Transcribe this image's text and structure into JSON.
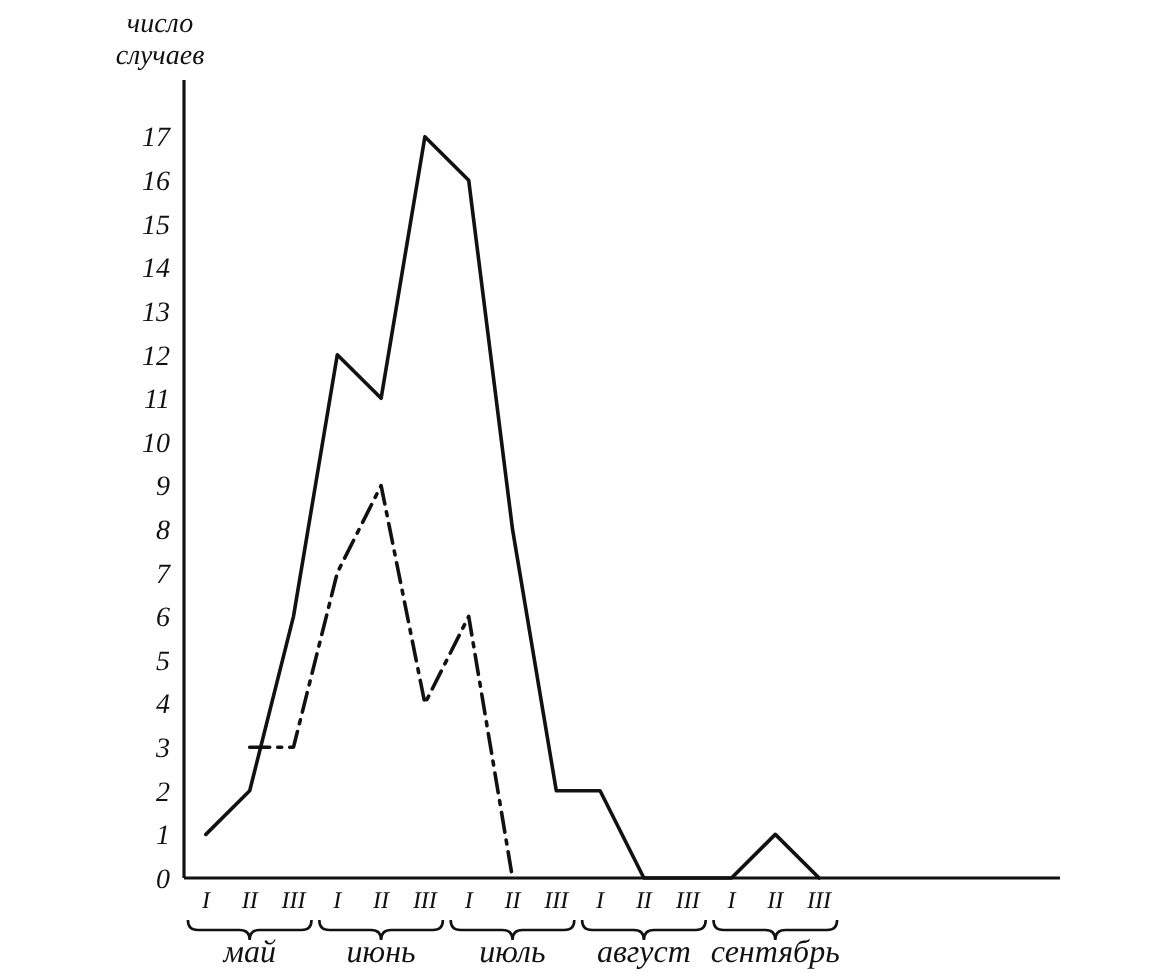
{
  "chart_data": {
    "type": "line",
    "ylabel": "число случаев",
    "categories": [
      "I",
      "II",
      "III",
      "I",
      "II",
      "III",
      "I",
      "II",
      "III",
      "I",
      "II",
      "III",
      "I",
      "II",
      "III",
      null,
      null,
      null,
      null,
      null
    ],
    "ylim": [
      0,
      18.3
    ],
    "yticks": [
      0,
      1,
      2,
      3,
      4,
      5,
      6,
      7,
      8,
      9,
      10,
      11,
      12,
      13,
      14,
      15,
      16,
      17
    ],
    "annotations": [
      "май",
      "июнь",
      "июль",
      "август",
      "сентябрь"
    ],
    "series": [
      {
        "color": "#111111",
        "line_style": "solid",
        "values": [
          1,
          2,
          6,
          12,
          11,
          17,
          16,
          8,
          2,
          2,
          0,
          0,
          0,
          1,
          0,
          null,
          null,
          null,
          null,
          null
        ]
      },
      {
        "color": "#111111",
        "line_style": "dashdot",
        "values": [
          null,
          3,
          3,
          7,
          9,
          4,
          6,
          0,
          null,
          null,
          null,
          null,
          null,
          null,
          null,
          null,
          null,
          null,
          null,
          null
        ]
      }
    ]
  }
}
